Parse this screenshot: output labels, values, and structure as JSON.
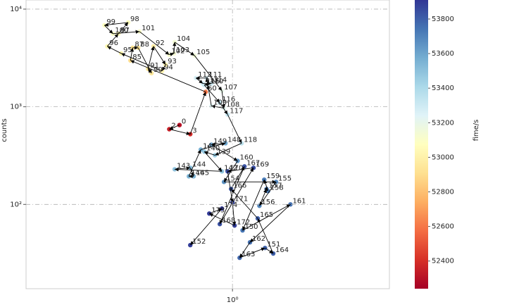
{
  "chart_data": {
    "type": "scatter",
    "y_label": "counts",
    "colorbar_label": "fime/s",
    "log_x": true,
    "log_y": true,
    "grid": true,
    "xlim": [
      0.142,
      4.41
    ],
    "ylim": [
      13.7,
      12400
    ],
    "xticks": [
      {
        "value": 1,
        "label": "10⁰"
      }
    ],
    "yticks": [
      {
        "value": 100,
        "label": "10²"
      },
      {
        "value": 1000,
        "label": "10³"
      },
      {
        "value": 10000,
        "label": "10⁴"
      }
    ],
    "clim": [
      52240,
      53910
    ],
    "cticks": [
      52400,
      52600,
      52800,
      53000,
      53200,
      53400,
      53600,
      53800
    ],
    "colormap": [
      "#a50026",
      "#d73027",
      "#f46d43",
      "#fdae61",
      "#fee090",
      "#ffffbf",
      "#e0f3f8",
      "#abd9e9",
      "#74add1",
      "#4575b4",
      "#313695"
    ],
    "point_labels": [
      "0",
      "2",
      "3",
      "60",
      "85",
      "87",
      "88",
      "90",
      "91",
      "92",
      "93",
      "94",
      "95",
      "96",
      "97",
      "98",
      "99",
      "100",
      "101",
      "102",
      "103",
      "104",
      "105",
      "107",
      "108",
      "109",
      "110",
      "111",
      "112",
      "113",
      "114",
      "115",
      "116",
      "117",
      "118",
      "139",
      "140",
      "142",
      "143",
      "144",
      "145",
      "146",
      "147",
      "148",
      "149",
      "160",
      "154",
      "155",
      "156",
      "157",
      "158",
      "159",
      "150",
      "161",
      "162",
      "163",
      "151",
      "164",
      "165",
      "166",
      "167",
      "168",
      "169",
      "170",
      "171",
      "172",
      "173",
      "174",
      "152"
    ],
    "x": [
      0.606,
      0.55,
      0.671,
      0.776,
      0.381,
      0.389,
      0.41,
      0.465,
      0.45,
      0.474,
      0.531,
      0.514,
      0.349,
      0.306,
      0.34,
      0.373,
      0.298,
      0.323,
      0.415,
      0.55,
      0.575,
      0.579,
      0.698,
      0.905,
      0.923,
      0.819,
      0.792,
      0.782,
      0.708,
      0.756,
      0.819,
      0.766,
      0.887,
      0.955,
      1.09,
      0.847,
      0.766,
      0.905,
      0.579,
      0.671,
      0.693,
      0.662,
      0.741,
      0.936,
      0.819,
      1.05,
      0.923,
      1.51,
      1.29,
      1.38,
      1.4,
      1.35,
      1.1,
      1.73,
      1.18,
      1.07,
      1.36,
      1.47,
      1.27,
      0.987,
      1.12,
      0.887,
      1.22,
      0.955,
      1.0,
      1.02,
      0.803,
      0.905,
      0.671
    ],
    "y": [
      650,
      589,
      524,
      1420,
      2980,
      4020,
      4020,
      2210,
      2440,
      4160,
      2700,
      2330,
      3520,
      4160,
      5600,
      7300,
      6840,
      5600,
      5890,
      3410,
      3520,
      4590,
      3350,
      1460,
      968,
      1020,
      1670,
      1970,
      1970,
      1730,
      1730,
      1670,
      1100,
      834,
      423,
      319,
      347,
      218,
      229,
      237,
      194,
      194,
      364,
      423,
      409,
      279,
      170,
      170,
      96.8,
      144,
      137,
      179,
      54.2,
      100,
      40.9,
      28.4,
      35.8,
      31.4,
      71.8,
      144,
      245,
      62.9,
      237,
      218,
      105,
      60.8,
      80.6,
      90.6,
      38.3
    ],
    "time": [
      52300,
      52350,
      52380,
      52600,
      52900,
      52920,
      52930,
      52950,
      52960,
      52980,
      53000,
      53010,
      53030,
      53040,
      53060,
      53070,
      53080,
      53100,
      53110,
      53120,
      53130,
      53140,
      53150,
      53200,
      53220,
      53230,
      53240,
      53260,
      53270,
      53280,
      53290,
      53300,
      53320,
      53330,
      53350,
      53450,
      53470,
      53490,
      53500,
      53520,
      53540,
      53550,
      53570,
      53590,
      53600,
      53650,
      53660,
      53680,
      53690,
      53700,
      53710,
      53720,
      53740,
      53750,
      53760,
      53780,
      53790,
      53800,
      53810,
      53820,
      53830,
      53840,
      53850,
      53860,
      53870,
      53880,
      53900,
      53910,
      53890
    ]
  }
}
